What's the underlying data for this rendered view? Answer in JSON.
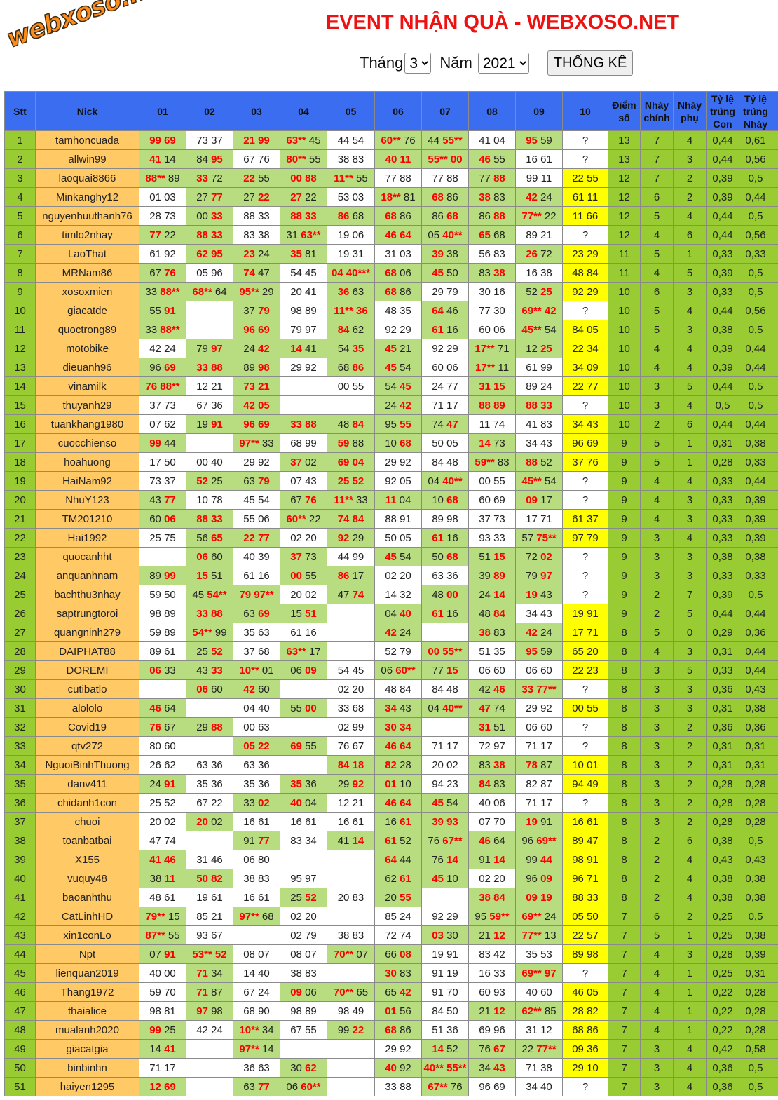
{
  "logo": {
    "text": "webxoso.net"
  },
  "title": "EVENT NHẬN QUÀ - WEBXOSO.NET",
  "controls": {
    "month_label": "Tháng",
    "month_value": "3",
    "year_label": "Năm",
    "year_value": "2021",
    "submit_label": "THỐNG KÊ"
  },
  "colors": {
    "header": "#3a6df0",
    "stt": "#99cc33",
    "nick": "#ffc966",
    "hit": "#b8dc80",
    "pending": "#ffff00",
    "hit_text": "#ff0000"
  },
  "headers": [
    "Stt",
    "Nick",
    "01",
    "02",
    "03",
    "04",
    "05",
    "06",
    "07",
    "08",
    "09",
    "10",
    "Điểm số",
    "Nháy chính",
    "Nháy phụ",
    "Tỷ lệ trúng Con",
    "Tỷ lệ trúng Nháy"
  ],
  "rows": [
    [
      "1",
      "tamhoncuada",
      [
        "[99] [69]",
        "73 37",
        "[21] [99]",
        "[63**] 45",
        "44 54",
        "[60**] 76",
        "44 [55**]",
        "41 04",
        "[95] 59"
      ],
      "?",
      "13",
      "7",
      "4",
      "0,44",
      "0,61"
    ],
    [
      "2",
      "allwin99",
      [
        "[41] 14",
        "84 [95]",
        "67 76",
        "[80**] 55",
        "38 83",
        "[40] [11]",
        "[55**] [00]",
        "[46] 55",
        "16 61"
      ],
      "?",
      "13",
      "7",
      "3",
      "0,44",
      "0,56"
    ],
    [
      "3",
      "laoquai8866",
      [
        "[88**] 89",
        "[33] 72",
        "[22] 55",
        "[00] [88]",
        "[11**] 55",
        "77 88",
        "77 88",
        "77 [88]",
        "99 11"
      ],
      "22 55",
      "12",
      "7",
      "2",
      "0,39",
      "0,5"
    ],
    [
      "4",
      "Minkanghy12",
      [
        "01 03",
        "27 [77]",
        "27 [22]",
        "[27] 22",
        "53 03",
        "[18**] 81",
        "[68] 86",
        "[38] 83",
        "[42] 24"
      ],
      "61 11",
      "12",
      "6",
      "2",
      "0,39",
      "0,44"
    ],
    [
      "5",
      "nguyenhuuthanh76",
      [
        "28 73",
        "00 [33]",
        "88 33",
        "[88] [33]",
        "[86] 68",
        "[68] 86",
        "86 [68]",
        "86 [88]",
        "[77**] 22"
      ],
      "11 66",
      "12",
      "5",
      "4",
      "0,44",
      "0,5"
    ],
    [
      "6",
      "timlo2nhay",
      [
        "[77] 22",
        "[88] [33]",
        "83 38",
        "31 [63**]",
        "19 06",
        "[46] [64]",
        "05 [40**]",
        "[65] 68",
        "89 21"
      ],
      "?",
      "12",
      "4",
      "6",
      "0,44",
      "0,56"
    ],
    [
      "7",
      "LaoThat",
      [
        "61 92",
        "[62] [95]",
        "[23] 24",
        "[35] 81",
        "19 31",
        "31 03",
        "[39] 38",
        "56 83",
        "[26] 72"
      ],
      "23 29",
      "11",
      "5",
      "1",
      "0,33",
      "0,33"
    ],
    [
      "8",
      "MRNam86",
      [
        "67 [76]",
        "05 96",
        "[74] 47",
        "54 45",
        "[04] [40***]",
        "[68] 06",
        "[45] 50",
        "83 [38]",
        "16 38"
      ],
      "48 84",
      "11",
      "4",
      "5",
      "0,39",
      "0,5"
    ],
    [
      "9",
      "xosoxmien",
      [
        "33 [88**]",
        "[68**] 64",
        "[95**] 29",
        "20 41",
        "[36] 63",
        "[68] 86",
        "29 79",
        "30 16",
        "52 [25]"
      ],
      "92 29",
      "10",
      "6",
      "3",
      "0,33",
      "0,5"
    ],
    [
      "10",
      "giacatde",
      [
        "55 [91]",
        "",
        "37 [79]",
        "98 89",
        "[11**] [36]",
        "48 35",
        "[64] 46",
        "77 30",
        "[69**] [42]"
      ],
      "?",
      "10",
      "5",
      "4",
      "0,44",
      "0,56"
    ],
    [
      "11",
      "quoctrong89",
      [
        "33 [88**]",
        "",
        "[96] [69]",
        "79 97",
        "[84] 62",
        "92 29",
        "[61] 16",
        "60 06",
        "[45**] 54"
      ],
      "84 05",
      "10",
      "5",
      "3",
      "0,38",
      "0,5"
    ],
    [
      "12",
      "motobike",
      [
        "42 24",
        "79 [97]",
        "24 [42]",
        "[14] 41",
        "54 [35]",
        "[45] 21",
        "92 29",
        "[17**] 71",
        "12 [25]"
      ],
      "22 34",
      "10",
      "4",
      "4",
      "0,39",
      "0,44"
    ],
    [
      "13",
      "dieuanh96",
      [
        "96 [69]",
        "[33] [88]",
        "89 [98]",
        "29 92",
        "68 [86]",
        "[45] 54",
        "60 06",
        "[17**] 11",
        "61 99"
      ],
      "34 09",
      "10",
      "4",
      "4",
      "0,39",
      "0,44"
    ],
    [
      "14",
      "vinamilk",
      [
        "[76] [88**]",
        "12 21",
        "[73] [21]",
        "",
        "00 55",
        "54 [45]",
        "24 77",
        "[31] [15]",
        "89 24"
      ],
      "22 77",
      "10",
      "3",
      "5",
      "0,44",
      "0,5"
    ],
    [
      "15",
      "thuyanh29",
      [
        "37 73",
        "67 36",
        "[42] [05]",
        "",
        "",
        "24 [42]",
        "71 17",
        "[88] [89]",
        "[88] [33]"
      ],
      "?",
      "10",
      "3",
      "4",
      "0,5",
      "0,5"
    ],
    [
      "16",
      "tuankhang1980",
      [
        "07 62",
        "19 [91]",
        "[96] [69]",
        "[33] [88]",
        "48 [84]",
        "95 [55]",
        "74 [47]",
        "11 74",
        "41 83"
      ],
      "34 43",
      "10",
      "2",
      "6",
      "0,44",
      "0,44"
    ],
    [
      "17",
      "cuocchienso",
      [
        "[99] 44",
        "",
        "[97**] 33",
        "68 99",
        "[59] 88",
        "10 [68]",
        "50 05",
        "[14] 73",
        "34 43"
      ],
      "96 69",
      "9",
      "5",
      "1",
      "0,31",
      "0,38"
    ],
    [
      "18",
      "hoahuong",
      [
        "17 50",
        "00 40",
        "29 92",
        "[37] 02",
        "[69] [04]",
        "29 92",
        "84 48",
        "[59**] 83",
        "[88] 52"
      ],
      "37 76",
      "9",
      "5",
      "1",
      "0,28",
      "0,33"
    ],
    [
      "19",
      "HaiNam92",
      [
        "73 37",
        "[52] 25",
        "63 [79]",
        "07 43",
        "[25] [52]",
        "92 05",
        "04 [40**]",
        "00 55",
        "[45**] 54"
      ],
      "?",
      "9",
      "4",
      "4",
      "0,33",
      "0,44"
    ],
    [
      "20",
      "NhuY123",
      [
        "43 [77]",
        "10 78",
        "45 54",
        "67 [76]",
        "[11**] 33",
        "[11] 04",
        "10 [68]",
        "60 69",
        "[09] 17"
      ],
      "?",
      "9",
      "4",
      "3",
      "0,33",
      "0,39"
    ],
    [
      "21",
      "TM201210",
      [
        "60 [06]",
        "[88] [33]",
        "55 06",
        "[60**] 22",
        "[74] [84]",
        "88 91",
        "89 98",
        "37 73",
        "17 71"
      ],
      "61 37",
      "9",
      "4",
      "3",
      "0,33",
      "0,39"
    ],
    [
      "22",
      "Hai1992",
      [
        "25 75",
        "56 [65]",
        "[22] [77]",
        "02 20",
        "[92] 29",
        "50 05",
        "[61] 16",
        "93 33",
        "57 [75**]"
      ],
      "97 79",
      "9",
      "3",
      "4",
      "0,33",
      "0,39"
    ],
    [
      "23",
      "quocanhht",
      [
        "",
        "[06] 60",
        "40 39",
        "[37] 73",
        "44 99",
        "[45] 54",
        "50 [68]",
        "51 [15]",
        "72 [02]"
      ],
      "?",
      "9",
      "3",
      "3",
      "0,38",
      "0,38"
    ],
    [
      "24",
      "anquanhnam",
      [
        "89 [99]",
        "[15] 51",
        "61 16",
        "[00] 55",
        "[86] 17",
        "02 20",
        "63 36",
        "39 [89]",
        "79 [97]"
      ],
      "?",
      "9",
      "3",
      "3",
      "0,33",
      "0,33"
    ],
    [
      "25",
      "bachthu3nhay",
      [
        "59 50",
        "45 [54**]",
        "[79] [97**]",
        "20 02",
        "47 [74]",
        "14 32",
        "48 [00]",
        "24 [14]",
        "[19] 43"
      ],
      "?",
      "9",
      "2",
      "7",
      "0,39",
      "0,5"
    ],
    [
      "26",
      "saptrungtoroi",
      [
        "98 89",
        "[33] [88]",
        "63 [69]",
        "15 [51]",
        "",
        "04 [40]",
        "[61] 16",
        "48 [84]",
        "34 43"
      ],
      "19 91",
      "9",
      "2",
      "5",
      "0,44",
      "0,44"
    ],
    [
      "27",
      "quangninh279",
      [
        "59 89",
        "[54**] 99",
        "35 63",
        "61 16",
        "",
        "[42] 24",
        "",
        "[38] 83",
        "[42] 24"
      ],
      "17 71",
      "8",
      "5",
      "0",
      "0,29",
      "0,36"
    ],
    [
      "28",
      "DAIPHAT88",
      [
        "89 61",
        "25 [52]",
        "37 68",
        "[63**] 17",
        "",
        "52 79",
        "[00] [55**]",
        "51 35",
        "[95] 59"
      ],
      "65 20",
      "8",
      "4",
      "3",
      "0,31",
      "0,44"
    ],
    [
      "29",
      "DOREMI",
      [
        "[06] 33",
        "43 [33]",
        "[10**] 01",
        "06 [09]",
        "54 45",
        "06 [60**]",
        "77 [15]",
        "06 60",
        "06 60"
      ],
      "22 23",
      "8",
      "3",
      "5",
      "0,33",
      "0,44"
    ],
    [
      "30",
      "cutibatlo",
      [
        "",
        "[06] 60",
        "[42] 60",
        "",
        "02 20",
        "48 84",
        "84 48",
        "42 [46]",
        "[33] [77**]"
      ],
      "?",
      "8",
      "3",
      "3",
      "0,36",
      "0,43"
    ],
    [
      "31",
      "alololo",
      [
        "[46] 64",
        "",
        "04 40",
        "55 [00]",
        "33 68",
        "[34] 43",
        "04 [40**]",
        "[47] 74",
        "29 92"
      ],
      "00 55",
      "8",
      "3",
      "3",
      "0,31",
      "0,38"
    ],
    [
      "32",
      "Covid19",
      [
        "[76] 67",
        "29 [88]",
        "00 63",
        "",
        "02 99",
        "[30] [34]",
        "",
        "[31] 51",
        "06 60"
      ],
      "?",
      "8",
      "3",
      "2",
      "0,36",
      "0,36"
    ],
    [
      "33",
      "qtv272",
      [
        "80 60",
        "",
        "[05] [22]",
        "[69] 55",
        "76 67",
        "[46] [64]",
        "71 17",
        "72 97",
        "71 17"
      ],
      "?",
      "8",
      "3",
      "2",
      "0,31",
      "0,31"
    ],
    [
      "34",
      "NguoiBinhThuong",
      [
        "26 62",
        "63 36",
        "63 36",
        "",
        "[84] [18]",
        "[82] 28",
        "20 02",
        "83 [38]",
        "[78] 87"
      ],
      "10 01",
      "8",
      "3",
      "2",
      "0,31",
      "0,31"
    ],
    [
      "35",
      "danv411",
      [
        "24 [91]",
        "35 36",
        "35 36",
        "[35] 36",
        "29 [92]",
        "[01] 10",
        "94 23",
        "[84] 83",
        "82 87"
      ],
      "94 49",
      "8",
      "3",
      "2",
      "0,28",
      "0,28"
    ],
    [
      "36",
      "chidanh1con",
      [
        "25 52",
        "67 22",
        "33 [02]",
        "[40] 04",
        "12 21",
        "[46] [64]",
        "[45] 54",
        "40 06",
        "71 17"
      ],
      "?",
      "8",
      "3",
      "2",
      "0,28",
      "0,28"
    ],
    [
      "37",
      "chuoi",
      [
        "20 02",
        "[20] 02",
        "16 61",
        "16 61",
        "16 61",
        "16 [61]",
        "[39] [93]",
        "07 70",
        "[19] 91"
      ],
      "16 61",
      "8",
      "3",
      "2",
      "0,28",
      "0,28"
    ],
    [
      "38",
      "toanbatbai",
      [
        "47 74",
        "",
        "91 [77]",
        "83 34",
        "41 [14]",
        "[61] 52",
        "76 [67**]",
        "[46] 64",
        "96 [69**]"
      ],
      "89 47",
      "8",
      "2",
      "6",
      "0,38",
      "0,5"
    ],
    [
      "39",
      "X155",
      [
        "[41] [46]",
        "31 46",
        "06 80",
        "",
        "",
        "[64] 44",
        "76 [14]",
        "91 [14]",
        "99 [44]"
      ],
      "98 91",
      "8",
      "2",
      "4",
      "0,43",
      "0,43"
    ],
    [
      "40",
      "vuquy48",
      [
        "38 [11]",
        "[50] [82]",
        "38 83",
        "95 97",
        "",
        "62 [61]",
        "[45] 10",
        "02 20",
        "96 [09]"
      ],
      "96 71",
      "8",
      "2",
      "4",
      "0,38",
      "0,38"
    ],
    [
      "41",
      "baoanhthu",
      [
        "48 61",
        "19 61",
        "16 61",
        "25 [52]",
        "20 83",
        "20 [55]",
        "",
        "[38] [84]",
        "[09] [19]"
      ],
      "88 33",
      "8",
      "2",
      "4",
      "0,38",
      "0,38"
    ],
    [
      "42",
      "CatLinhHD",
      [
        "[79**] 15",
        "85 21",
        "[97**] 68",
        "02 20",
        "",
        "85 24",
        "92 29",
        "95 [59**]",
        "[69**] 24"
      ],
      "05 50",
      "7",
      "6",
      "2",
      "0,25",
      "0,5"
    ],
    [
      "43",
      "xin1conLo",
      [
        "[87**] 55",
        "93 67",
        "",
        "02 79",
        "38 83",
        "72 74",
        "[03] 30",
        "21 [12]",
        "[77**] 13"
      ],
      "22 57",
      "7",
      "5",
      "1",
      "0,25",
      "0,38"
    ],
    [
      "44",
      "Npt",
      [
        "07 [91]",
        "[53**] [52]",
        "08 07",
        "08 07",
        "[70**] 07",
        "66 [08]",
        "19 91",
        "83 42",
        "35 53"
      ],
      "89 98",
      "7",
      "4",
      "3",
      "0,28",
      "0,39"
    ],
    [
      "45",
      "lienquan2019",
      [
        "40 00",
        "[71] 34",
        "14 40",
        "38 83",
        "",
        "[30] 83",
        "91 19",
        "16 33",
        "[69**] [97]"
      ],
      "?",
      "7",
      "4",
      "1",
      "0,25",
      "0,31"
    ],
    [
      "46",
      "Thang1972",
      [
        "59 70",
        "[71] 87",
        "67 24",
        "[09] 06",
        "[70**] 65",
        "65 [42]",
        "91 70",
        "60 93",
        "40 60"
      ],
      "46 05",
      "7",
      "4",
      "1",
      "0,22",
      "0,28"
    ],
    [
      "47",
      "thaialice",
      [
        "98 81",
        "[97] 98",
        "68 90",
        "98 89",
        "98 49",
        "[01] 56",
        "84 50",
        "21 [12]",
        "[62**] 85"
      ],
      "28 82",
      "7",
      "4",
      "1",
      "0,22",
      "0,28"
    ],
    [
      "48",
      "mualanh2020",
      [
        "[99] 25",
        "42 24",
        "[10**] 34",
        "67 55",
        "99 [22]",
        "[68] 86",
        "51 36",
        "69 96",
        "31 12"
      ],
      "68 86",
      "7",
      "4",
      "1",
      "0,22",
      "0,28"
    ],
    [
      "49",
      "giacatgia",
      [
        "14 [41]",
        "",
        "[97**] 14",
        "",
        "",
        "29 92",
        "[14] 52",
        "76 [67]",
        "22 [77**]"
      ],
      "09 36",
      "7",
      "3",
      "4",
      "0,42",
      "0,58"
    ],
    [
      "50",
      "binbinhn",
      [
        "71 17",
        "",
        "36 63",
        "30 [62]",
        "",
        "[40] 92",
        "[40**] [55**]",
        "34 [43]",
        "71 38"
      ],
      "29 10",
      "7",
      "3",
      "4",
      "0,36",
      "0,5"
    ],
    [
      "51",
      "haiyen1295",
      [
        "[12] [69]",
        "",
        "63 [77]",
        "06 [60**]",
        "",
        "33 88",
        "[67**] 76",
        "96 69",
        "34 40"
      ],
      "?",
      "7",
      "3",
      "4",
      "0,36",
      "0,5"
    ]
  ]
}
